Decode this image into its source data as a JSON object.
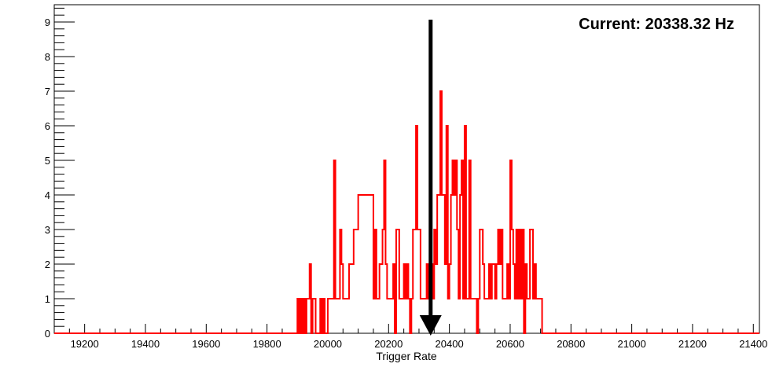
{
  "chart_data": {
    "type": "histogram",
    "title": "",
    "xlabel": "Trigger Rate",
    "ylabel": "",
    "xlim": [
      19100,
      21420
    ],
    "ylim": [
      0,
      9.5
    ],
    "x_ticks": [
      19200,
      19400,
      19600,
      19800,
      20000,
      20200,
      20400,
      20600,
      20800,
      21000,
      21200,
      21400
    ],
    "y_ticks": [
      0,
      1,
      2,
      3,
      4,
      5,
      6,
      7,
      8,
      9
    ],
    "bin_width": 5,
    "series": [
      {
        "color": "#ff0000",
        "bin_start": 19900,
        "values": [
          1,
          0,
          1,
          0,
          1,
          0,
          1,
          1,
          2,
          0,
          1,
          1,
          0,
          0,
          0,
          1,
          0,
          1,
          0,
          0,
          1,
          1,
          1,
          1,
          5,
          1,
          1,
          1,
          3,
          2,
          1,
          1,
          1,
          1,
          2,
          2,
          2,
          3,
          3,
          3,
          4,
          4,
          4,
          4,
          4,
          4,
          4,
          4,
          4,
          4,
          1,
          3,
          1,
          1,
          2,
          2,
          3,
          5,
          2,
          1,
          1,
          1,
          1,
          2,
          0,
          3,
          3,
          1,
          1,
          1,
          2,
          1,
          2,
          1,
          0,
          1,
          3,
          3,
          6,
          3,
          3,
          1,
          1,
          1,
          1,
          2,
          1,
          1,
          2,
          1,
          3,
          2,
          4,
          4,
          7,
          4,
          4,
          2,
          6,
          1,
          2,
          4,
          5,
          4,
          5,
          3,
          1,
          4,
          5,
          1,
          6,
          1,
          1,
          5,
          1,
          1,
          1,
          1,
          0,
          1,
          3,
          3,
          2,
          1,
          1,
          1,
          2,
          1,
          2,
          2,
          1,
          2,
          3,
          2,
          3,
          1,
          1,
          1,
          2,
          1,
          5,
          3,
          2,
          1,
          3,
          1,
          3,
          1,
          3,
          0,
          2,
          1,
          1,
          3,
          3,
          1,
          2,
          1,
          1,
          1,
          1,
          0
        ]
      }
    ],
    "current_value": 20338.32,
    "current_label": "Current: 20338.32 Hz",
    "marker_color": "#000000"
  }
}
